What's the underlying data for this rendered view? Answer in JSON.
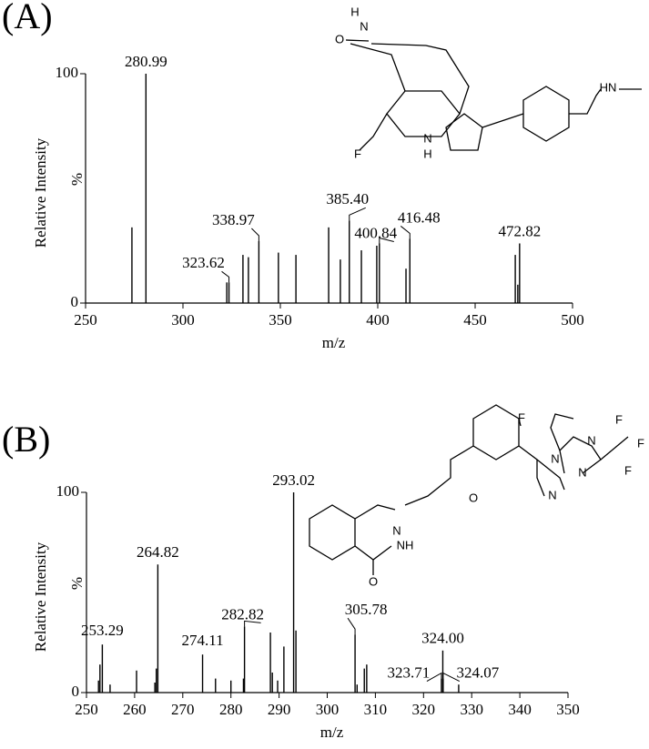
{
  "chart_data": [
    {
      "type": "spectrum",
      "panel": "(A)",
      "xlabel": "m/z",
      "ylabel": "Relative Intensity",
      "ylabel_unit": "%",
      "xlim": [
        250,
        500
      ],
      "xticks": [
        250,
        300,
        350,
        400,
        450,
        500
      ],
      "ylim": [
        0,
        100
      ],
      "yticks": [
        0,
        100
      ],
      "color": "#000000",
      "x": [
        273.8,
        280.99,
        322.5,
        323.62,
        330.8,
        333.6,
        338.97,
        349,
        358,
        374.8,
        380.8,
        385.4,
        391.6,
        399.5,
        400.84,
        414.5,
        416.48,
        470.6,
        471.9,
        472.82
      ],
      "values": [
        33,
        100,
        9,
        9,
        21,
        20,
        27,
        22,
        21,
        33,
        19,
        36,
        23,
        25,
        26,
        15,
        28,
        21,
        8,
        26
      ],
      "peak_labels": [
        null,
        "280.99",
        null,
        "323.62",
        null,
        null,
        "338.97",
        null,
        null,
        null,
        null,
        "385.40",
        null,
        null,
        "400.84",
        null,
        "416.48",
        null,
        null,
        "472.82"
      ],
      "structure_labels": [
        "H",
        "N",
        "O",
        "HN",
        "F",
        "N",
        "H"
      ]
    },
    {
      "type": "spectrum",
      "panel": "(B)",
      "xlabel": "m/z",
      "ylabel": "Relative Intensity",
      "ylabel_unit": "%",
      "xlim": [
        250,
        350
      ],
      "xticks": [
        250,
        260,
        270,
        280,
        290,
        300,
        310,
        320,
        330,
        340,
        350
      ],
      "ylim": [
        0,
        100
      ],
      "yticks": [
        0,
        100
      ],
      "color": "#000000",
      "x": [
        252.5,
        252.8,
        253.29,
        254.9,
        260.4,
        264.2,
        264.5,
        264.82,
        274.11,
        276.8,
        280,
        282.6,
        282.82,
        288.2,
        288.6,
        289.7,
        291,
        293.02,
        293.5,
        305.78,
        306.2,
        307.7,
        308.2,
        323.71,
        324.0,
        324.07,
        327.3
      ],
      "values": [
        6,
        14,
        24,
        4,
        11,
        5,
        12,
        64,
        19,
        7,
        6,
        7,
        33,
        30,
        10,
        6,
        23,
        100,
        31,
        29,
        4,
        12,
        14,
        7,
        21,
        7,
        4
      ],
      "peak_labels": [
        null,
        null,
        "253.29",
        null,
        null,
        null,
        null,
        "264.82",
        "274.11",
        null,
        null,
        null,
        "282.82",
        null,
        null,
        null,
        null,
        "293.02",
        null,
        "305.78",
        null,
        null,
        null,
        "323.71",
        "324.00",
        "324.07",
        null
      ],
      "structure_labels": [
        "F",
        "N",
        "N",
        "N",
        "N",
        "O",
        "F",
        "F",
        "F",
        "N",
        "NH",
        "O"
      ]
    }
  ]
}
